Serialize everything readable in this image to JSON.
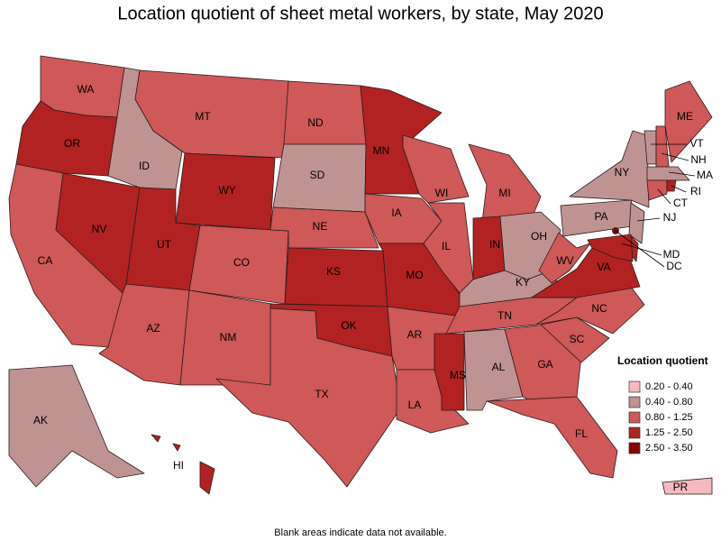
{
  "title": "Location quotient of sheet metal workers, by state, May 2020",
  "footnote": "Blank areas indicate data not available.",
  "legend": {
    "title": "Location quotient",
    "classes": [
      {
        "label": "0.20 - 0.40",
        "color": "#f7b9c0"
      },
      {
        "label": "0.40 - 0.80",
        "color": "#c09393"
      },
      {
        "label": "0.80 - 1.25",
        "color": "#cf5858"
      },
      {
        "label": "1.25 - 2.50",
        "color": "#b22222"
      },
      {
        "label": "2.50 - 3.50",
        "color": "#8a0000"
      }
    ]
  },
  "states": [
    {
      "abbr": "WA",
      "class": 2
    },
    {
      "abbr": "OR",
      "class": 3
    },
    {
      "abbr": "CA",
      "class": 2
    },
    {
      "abbr": "NV",
      "class": 3
    },
    {
      "abbr": "ID",
      "class": 1
    },
    {
      "abbr": "MT",
      "class": 2
    },
    {
      "abbr": "WY",
      "class": 3
    },
    {
      "abbr": "UT",
      "class": 3
    },
    {
      "abbr": "AZ",
      "class": 2
    },
    {
      "abbr": "CO",
      "class": 2
    },
    {
      "abbr": "NM",
      "class": 2
    },
    {
      "abbr": "ND",
      "class": 2
    },
    {
      "abbr": "SD",
      "class": 1
    },
    {
      "abbr": "NE",
      "class": 2
    },
    {
      "abbr": "KS",
      "class": 3
    },
    {
      "abbr": "OK",
      "class": 3
    },
    {
      "abbr": "TX",
      "class": 2
    },
    {
      "abbr": "MN",
      "class": 3
    },
    {
      "abbr": "IA",
      "class": 2
    },
    {
      "abbr": "MO",
      "class": 3
    },
    {
      "abbr": "AR",
      "class": 2
    },
    {
      "abbr": "LA",
      "class": 2
    },
    {
      "abbr": "WI",
      "class": 2
    },
    {
      "abbr": "IL",
      "class": 2
    },
    {
      "abbr": "MI",
      "class": 2
    },
    {
      "abbr": "IN",
      "class": 3
    },
    {
      "abbr": "OH",
      "class": 1
    },
    {
      "abbr": "KY",
      "class": 1
    },
    {
      "abbr": "TN",
      "class": 2
    },
    {
      "abbr": "MS",
      "class": 3
    },
    {
      "abbr": "AL",
      "class": 1
    },
    {
      "abbr": "GA",
      "class": 2
    },
    {
      "abbr": "FL",
      "class": 2
    },
    {
      "abbr": "SC",
      "class": 2
    },
    {
      "abbr": "NC",
      "class": 2
    },
    {
      "abbr": "VA",
      "class": 3
    },
    {
      "abbr": "WV",
      "class": 2
    },
    {
      "abbr": "PA",
      "class": 1
    },
    {
      "abbr": "NY",
      "class": 1
    },
    {
      "abbr": "NJ",
      "class": 1
    },
    {
      "abbr": null,
      "class": 3
    },
    {
      "abbr": "MD",
      "class": 3
    },
    {
      "abbr": "DC",
      "class": 4
    },
    {
      "abbr": "VT",
      "class": 1
    },
    {
      "abbr": "NH",
      "class": 2
    },
    {
      "abbr": "ME",
      "class": 2
    },
    {
      "abbr": "MA",
      "class": 1
    },
    {
      "abbr": "CT",
      "class": 2
    },
    {
      "abbr": "RI",
      "class": 3
    },
    {
      "abbr": "AK",
      "class": 1
    },
    {
      "abbr": "HI",
      "class": 3
    },
    {
      "abbr": "PR",
      "class": 0
    }
  ]
}
